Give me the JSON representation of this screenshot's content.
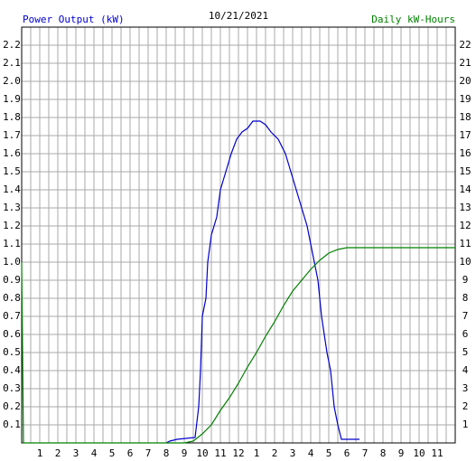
{
  "chart_data": {
    "type": "line",
    "title": "10/21/2021",
    "ylabel": "Power Output (kW)",
    "y2label": "Daily kW-Hours",
    "xlim": [
      0,
      24
    ],
    "xticks": [
      1,
      2,
      3,
      4,
      5,
      6,
      7,
      8,
      9,
      10,
      11,
      12,
      {
        "value": 13,
        "label": "1"
      },
      {
        "value": 14,
        "label": "2"
      },
      {
        "value": 15,
        "label": "3"
      },
      {
        "value": 16,
        "label": "4"
      },
      {
        "value": 17,
        "label": "5"
      },
      {
        "value": 18,
        "label": "6"
      },
      {
        "value": 19,
        "label": "7"
      },
      {
        "value": 20,
        "label": "8"
      },
      {
        "value": 21,
        "label": "9"
      },
      {
        "value": 22,
        "label": "10"
      },
      {
        "value": 23,
        "label": "11"
      }
    ],
    "ylim": [
      0,
      2.3
    ],
    "yticks": [
      0.1,
      0.2,
      0.3,
      0.4,
      0.5,
      0.6,
      0.7,
      0.8,
      0.9,
      {
        "value": 1,
        "label": "1.0"
      },
      1.1,
      1.2,
      1.3,
      1.4,
      1.5,
      1.6,
      1.7,
      1.8,
      1.9,
      {
        "value": 2,
        "label": "2.0"
      },
      2.1,
      2.2
    ],
    "y2lim": [
      0,
      23
    ],
    "y2ticks": [
      1,
      2,
      3,
      4,
      5,
      6,
      7,
      8,
      9,
      10,
      11,
      12,
      13,
      14,
      15,
      16,
      17,
      18,
      19,
      20,
      21,
      22
    ],
    "grid": true,
    "series": [
      {
        "name": "Power Output (kW)",
        "color": "#0000cc",
        "x": [
          8.0,
          8.2,
          8.6,
          9.6,
          9.8,
          9.9,
          10.0,
          10.2,
          10.3,
          10.5,
          10.8,
          11.0,
          11.3,
          11.6,
          11.9,
          12.2,
          12.5,
          12.8,
          13.2,
          13.5,
          13.8,
          14.2,
          14.6,
          14.9,
          15.2,
          15.5,
          15.8,
          16.1,
          16.4,
          16.6,
          16.9,
          17.1,
          17.3,
          17.5,
          17.7,
          18.7
        ],
        "values": [
          0,
          0.01,
          0.02,
          0.03,
          0.2,
          0.4,
          0.7,
          0.8,
          1.0,
          1.15,
          1.25,
          1.4,
          1.5,
          1.6,
          1.68,
          1.72,
          1.74,
          1.78,
          1.78,
          1.76,
          1.72,
          1.68,
          1.6,
          1.5,
          1.4,
          1.3,
          1.2,
          1.05,
          0.9,
          0.7,
          0.5,
          0.4,
          0.2,
          0.1,
          0.02,
          0.02
        ]
      },
      {
        "name": "Daily kW-Hours",
        "color": "#008000",
        "axis": "y2",
        "x": [
          0,
          0.1,
          9.0,
          9.5,
          10,
          10.5,
          11,
          11.5,
          12,
          12.5,
          13,
          13.5,
          14,
          14.5,
          15,
          15.5,
          16,
          16.5,
          17,
          17.5,
          18,
          24
        ],
        "values": [
          10,
          0,
          0,
          0.1,
          0.5,
          1,
          1.8,
          2.5,
          3.3,
          4.2,
          5.0,
          5.9,
          6.7,
          7.6,
          8.4,
          9.0,
          9.6,
          10.1,
          10.5,
          10.7,
          10.8,
          10.8
        ]
      }
    ]
  }
}
